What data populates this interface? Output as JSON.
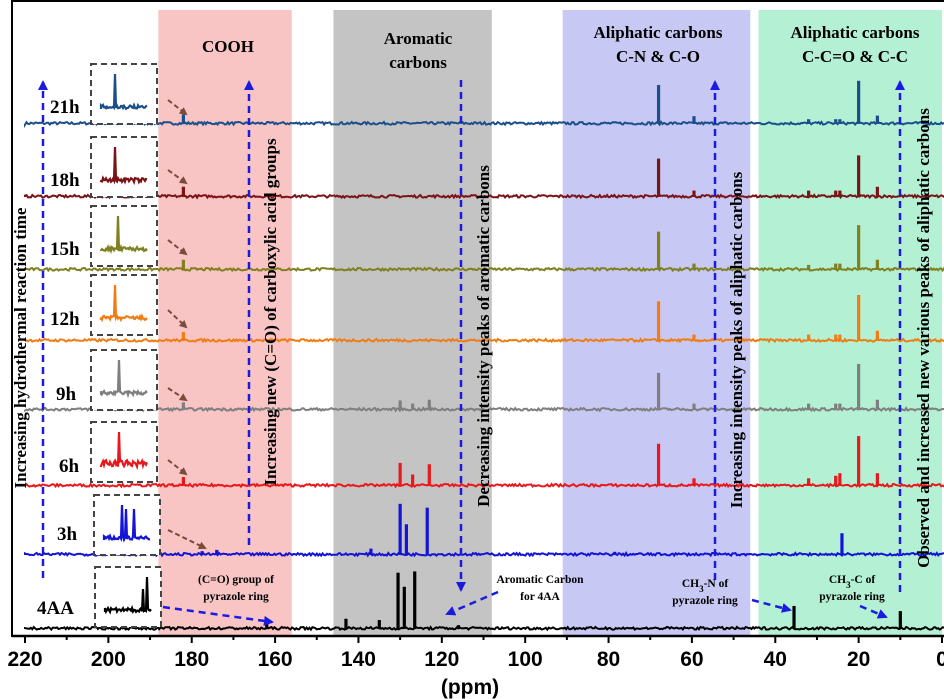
{
  "chart_data": {
    "type": "line",
    "title": "",
    "xlabel": "(ppm)",
    "ylabel": "",
    "x_reversed": true,
    "xlim": [
      220,
      0
    ],
    "x_ticks": [
      220,
      200,
      180,
      160,
      140,
      120,
      100,
      80,
      60,
      40,
      20,
      0
    ],
    "grid": false,
    "regions": [
      {
        "name": "COOH",
        "lines": [
          "COOH"
        ],
        "from": 188,
        "to": 156,
        "color": "#f8c4c4"
      },
      {
        "name": "Aromatic carbons",
        "lines": [
          "Aromatic",
          "carbons"
        ],
        "from": 146,
        "to": 108,
        "color": "#c4c4c4"
      },
      {
        "name": "Aliphatic carbons C-N & C-O",
        "lines": [
          "Aliphatic carbons",
          "C-N & C-O"
        ],
        "from": 91,
        "to": 46,
        "color": "#c8c8f4"
      },
      {
        "name": "Aliphatic carbons C-C=O & C-C",
        "lines": [
          "Aliphatic carbons",
          "C-C=O & C-C"
        ],
        "from": 44,
        "to": 0,
        "color": "#b4f0d4"
      }
    ],
    "series": [
      {
        "name": "21h",
        "color": "#1a4f8c",
        "peaks": [
          [
            182,
            0.16
          ],
          [
            68,
            0.65
          ],
          [
            59.5,
            0.13
          ],
          [
            32,
            0.08
          ],
          [
            25.5,
            0.08
          ],
          [
            24.5,
            0.08
          ],
          [
            20,
            0.72
          ],
          [
            15.5,
            0.14
          ]
        ]
      },
      {
        "name": "18h",
        "color": "#7a1416",
        "peaks": [
          [
            182,
            0.16
          ],
          [
            68,
            0.6
          ],
          [
            59.5,
            0.1
          ],
          [
            32,
            0.1
          ],
          [
            25.5,
            0.1
          ],
          [
            24.5,
            0.1
          ],
          [
            20,
            0.65
          ],
          [
            15.5,
            0.16
          ]
        ]
      },
      {
        "name": "15h",
        "color": "#808020",
        "peaks": [
          [
            182,
            0.16
          ],
          [
            68,
            0.6
          ],
          [
            59.5,
            0.1
          ],
          [
            32,
            0.08
          ],
          [
            25.5,
            0.1
          ],
          [
            24.5,
            0.1
          ],
          [
            20,
            0.7
          ],
          [
            15.5,
            0.16
          ]
        ]
      },
      {
        "name": "12h",
        "color": "#f07d14",
        "peaks": [
          [
            182,
            0.14
          ],
          [
            68,
            0.62
          ],
          [
            59.5,
            0.1
          ],
          [
            32,
            0.1
          ],
          [
            25.5,
            0.1
          ],
          [
            24.5,
            0.1
          ],
          [
            20,
            0.72
          ],
          [
            15.5,
            0.16
          ]
        ]
      },
      {
        "name": "9h",
        "color": "#7f7f7f",
        "peaks": [
          [
            182,
            0.12
          ],
          [
            130,
            0.15
          ],
          [
            127,
            0.1
          ],
          [
            123,
            0.16
          ],
          [
            68,
            0.58
          ],
          [
            59.5,
            0.1
          ],
          [
            32,
            0.1
          ],
          [
            25.5,
            0.1
          ],
          [
            24.5,
            0.1
          ],
          [
            20,
            0.72
          ],
          [
            15.5,
            0.16
          ]
        ]
      },
      {
        "name": "6h",
        "color": "#e8181c",
        "peaks": [
          [
            182,
            0.14
          ],
          [
            130,
            0.36
          ],
          [
            127,
            0.18
          ],
          [
            123,
            0.34
          ],
          [
            68,
            0.66
          ],
          [
            59.5,
            0.12
          ],
          [
            32,
            0.12
          ],
          [
            25.5,
            0.16
          ],
          [
            24.5,
            0.2
          ],
          [
            20,
            0.78
          ],
          [
            15.5,
            0.2
          ]
        ]
      },
      {
        "name": "3h",
        "color": "#1414d8",
        "peaks": [
          [
            177.5,
            0.06
          ],
          [
            174,
            0.08
          ],
          [
            137,
            0.1
          ],
          [
            130,
            0.8
          ],
          [
            128.5,
            0.48
          ],
          [
            123.5,
            0.74
          ],
          [
            78.5,
            0.05
          ],
          [
            24,
            0.34
          ]
        ]
      },
      {
        "name": "4AA",
        "color": "#000000",
        "peaks": [
          [
            162,
            0.1
          ],
          [
            143,
            0.16
          ],
          [
            135,
            0.14
          ],
          [
            130.5,
            0.88
          ],
          [
            129,
            0.66
          ],
          [
            126.5,
            0.9
          ],
          [
            116,
            0.06
          ],
          [
            35.5,
            0.36
          ],
          [
            10,
            0.28
          ]
        ]
      }
    ],
    "arrow_labels": [
      "Increasing hydrothermal reaction time",
      "Increasing new (C=O) of carboxylic acid groups",
      "Decreasing intensity peaks of aromatic carbons",
      "Increasing intensity peaks of aliphatic carbons",
      "Observed and increased new various peaks of aliphatic carbons"
    ],
    "annotations": {
      "cooh": [
        "(C=O) group of",
        "pyrazole ring"
      ],
      "aromatic": [
        "Aromatic Carbon",
        "for 4AA"
      ],
      "ch3n": [
        "CH",
        "3",
        "-N of",
        "pyrazole ring"
      ],
      "ch3c": [
        "CH",
        "3",
        "-C of",
        "pyrazole ring"
      ]
    }
  }
}
